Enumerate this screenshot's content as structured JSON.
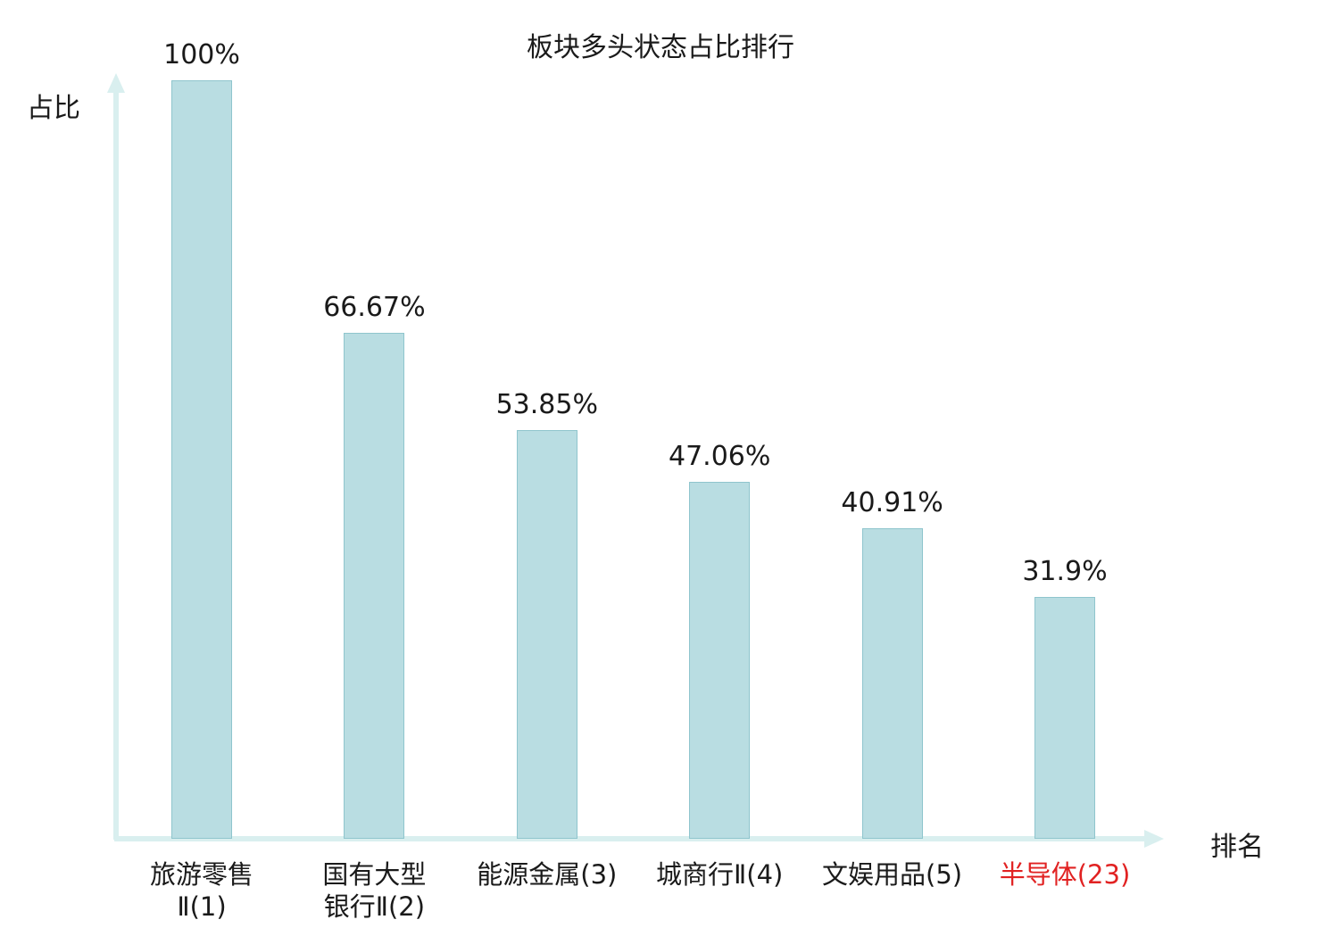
{
  "chart_data": {
    "type": "bar",
    "title": "板块多头状态占比排行",
    "ylabel": "占比",
    "xlabel": "排名",
    "categories": [
      "旅游零售\nⅡ(1)",
      "国有大型\n银行Ⅱ(2)",
      "能源金属(3)",
      "城商行Ⅱ(4)",
      "文娱用品(5)",
      "半导体(23)"
    ],
    "values": [
      100,
      66.67,
      53.85,
      47.06,
      40.91,
      31.9
    ],
    "value_labels": [
      "100%",
      "66.67%",
      "53.85%",
      "47.06%",
      "40.91%",
      "31.9%"
    ],
    "highlight_index": 5,
    "ylim": [
      0,
      100
    ],
    "grid": false,
    "legend": "none",
    "colors": {
      "bar_fill": "#b9dde2",
      "bar_border": "#8fc5cd",
      "axis": "#d9efef",
      "text": "#1a1a1a",
      "highlight": "#e12222"
    }
  }
}
